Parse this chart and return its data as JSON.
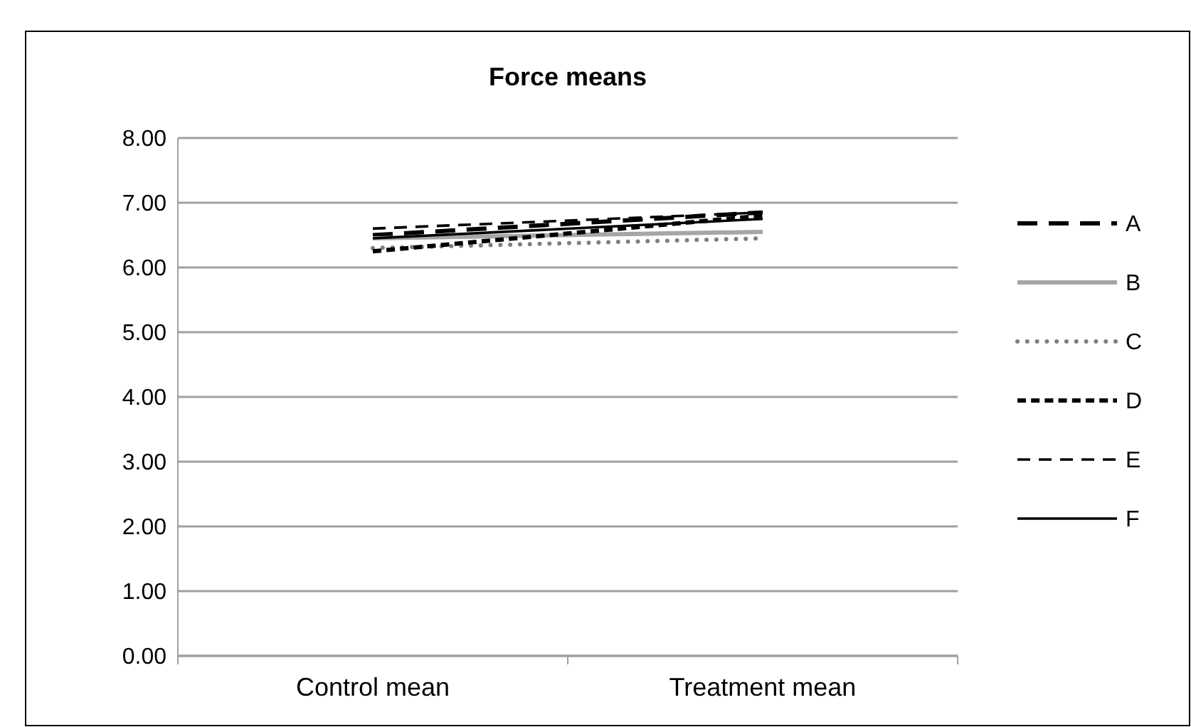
{
  "chart_data": {
    "type": "line",
    "title": "Force means",
    "categories": [
      "Control mean",
      "Treatment mean"
    ],
    "series": [
      {
        "name": "A",
        "color": "#000000",
        "values": [
          6.5,
          6.85
        ],
        "line_style": "dashed"
      },
      {
        "name": "B",
        "color": "#a6a6a6",
        "values": [
          6.45,
          6.55
        ],
        "line_style": "solid"
      },
      {
        "name": "C",
        "color": "#7f7f7f",
        "values": [
          6.3,
          6.45
        ],
        "line_style": "dotted"
      },
      {
        "name": "D",
        "color": "#000000",
        "values": [
          6.25,
          6.8
        ],
        "line_style": "dashed"
      },
      {
        "name": "E",
        "color": "#000000",
        "values": [
          6.6,
          6.85
        ],
        "line_style": "dashed"
      },
      {
        "name": "F",
        "color": "#000000",
        "values": [
          6.45,
          6.75
        ],
        "line_style": "solid"
      }
    ],
    "ylim": [
      0,
      8
    ],
    "yticks": [
      {
        "value": 0,
        "label": "0.00"
      },
      {
        "value": 1,
        "label": "1.00"
      },
      {
        "value": 2,
        "label": "2.00"
      },
      {
        "value": 3,
        "label": "3.00"
      },
      {
        "value": 4,
        "label": "4.00"
      },
      {
        "value": 5,
        "label": "5.00"
      },
      {
        "value": 6,
        "label": "6.00"
      },
      {
        "value": 7,
        "label": "7.00"
      },
      {
        "value": 8,
        "label": "8.00"
      }
    ],
    "grid": "y",
    "legend": "right"
  }
}
